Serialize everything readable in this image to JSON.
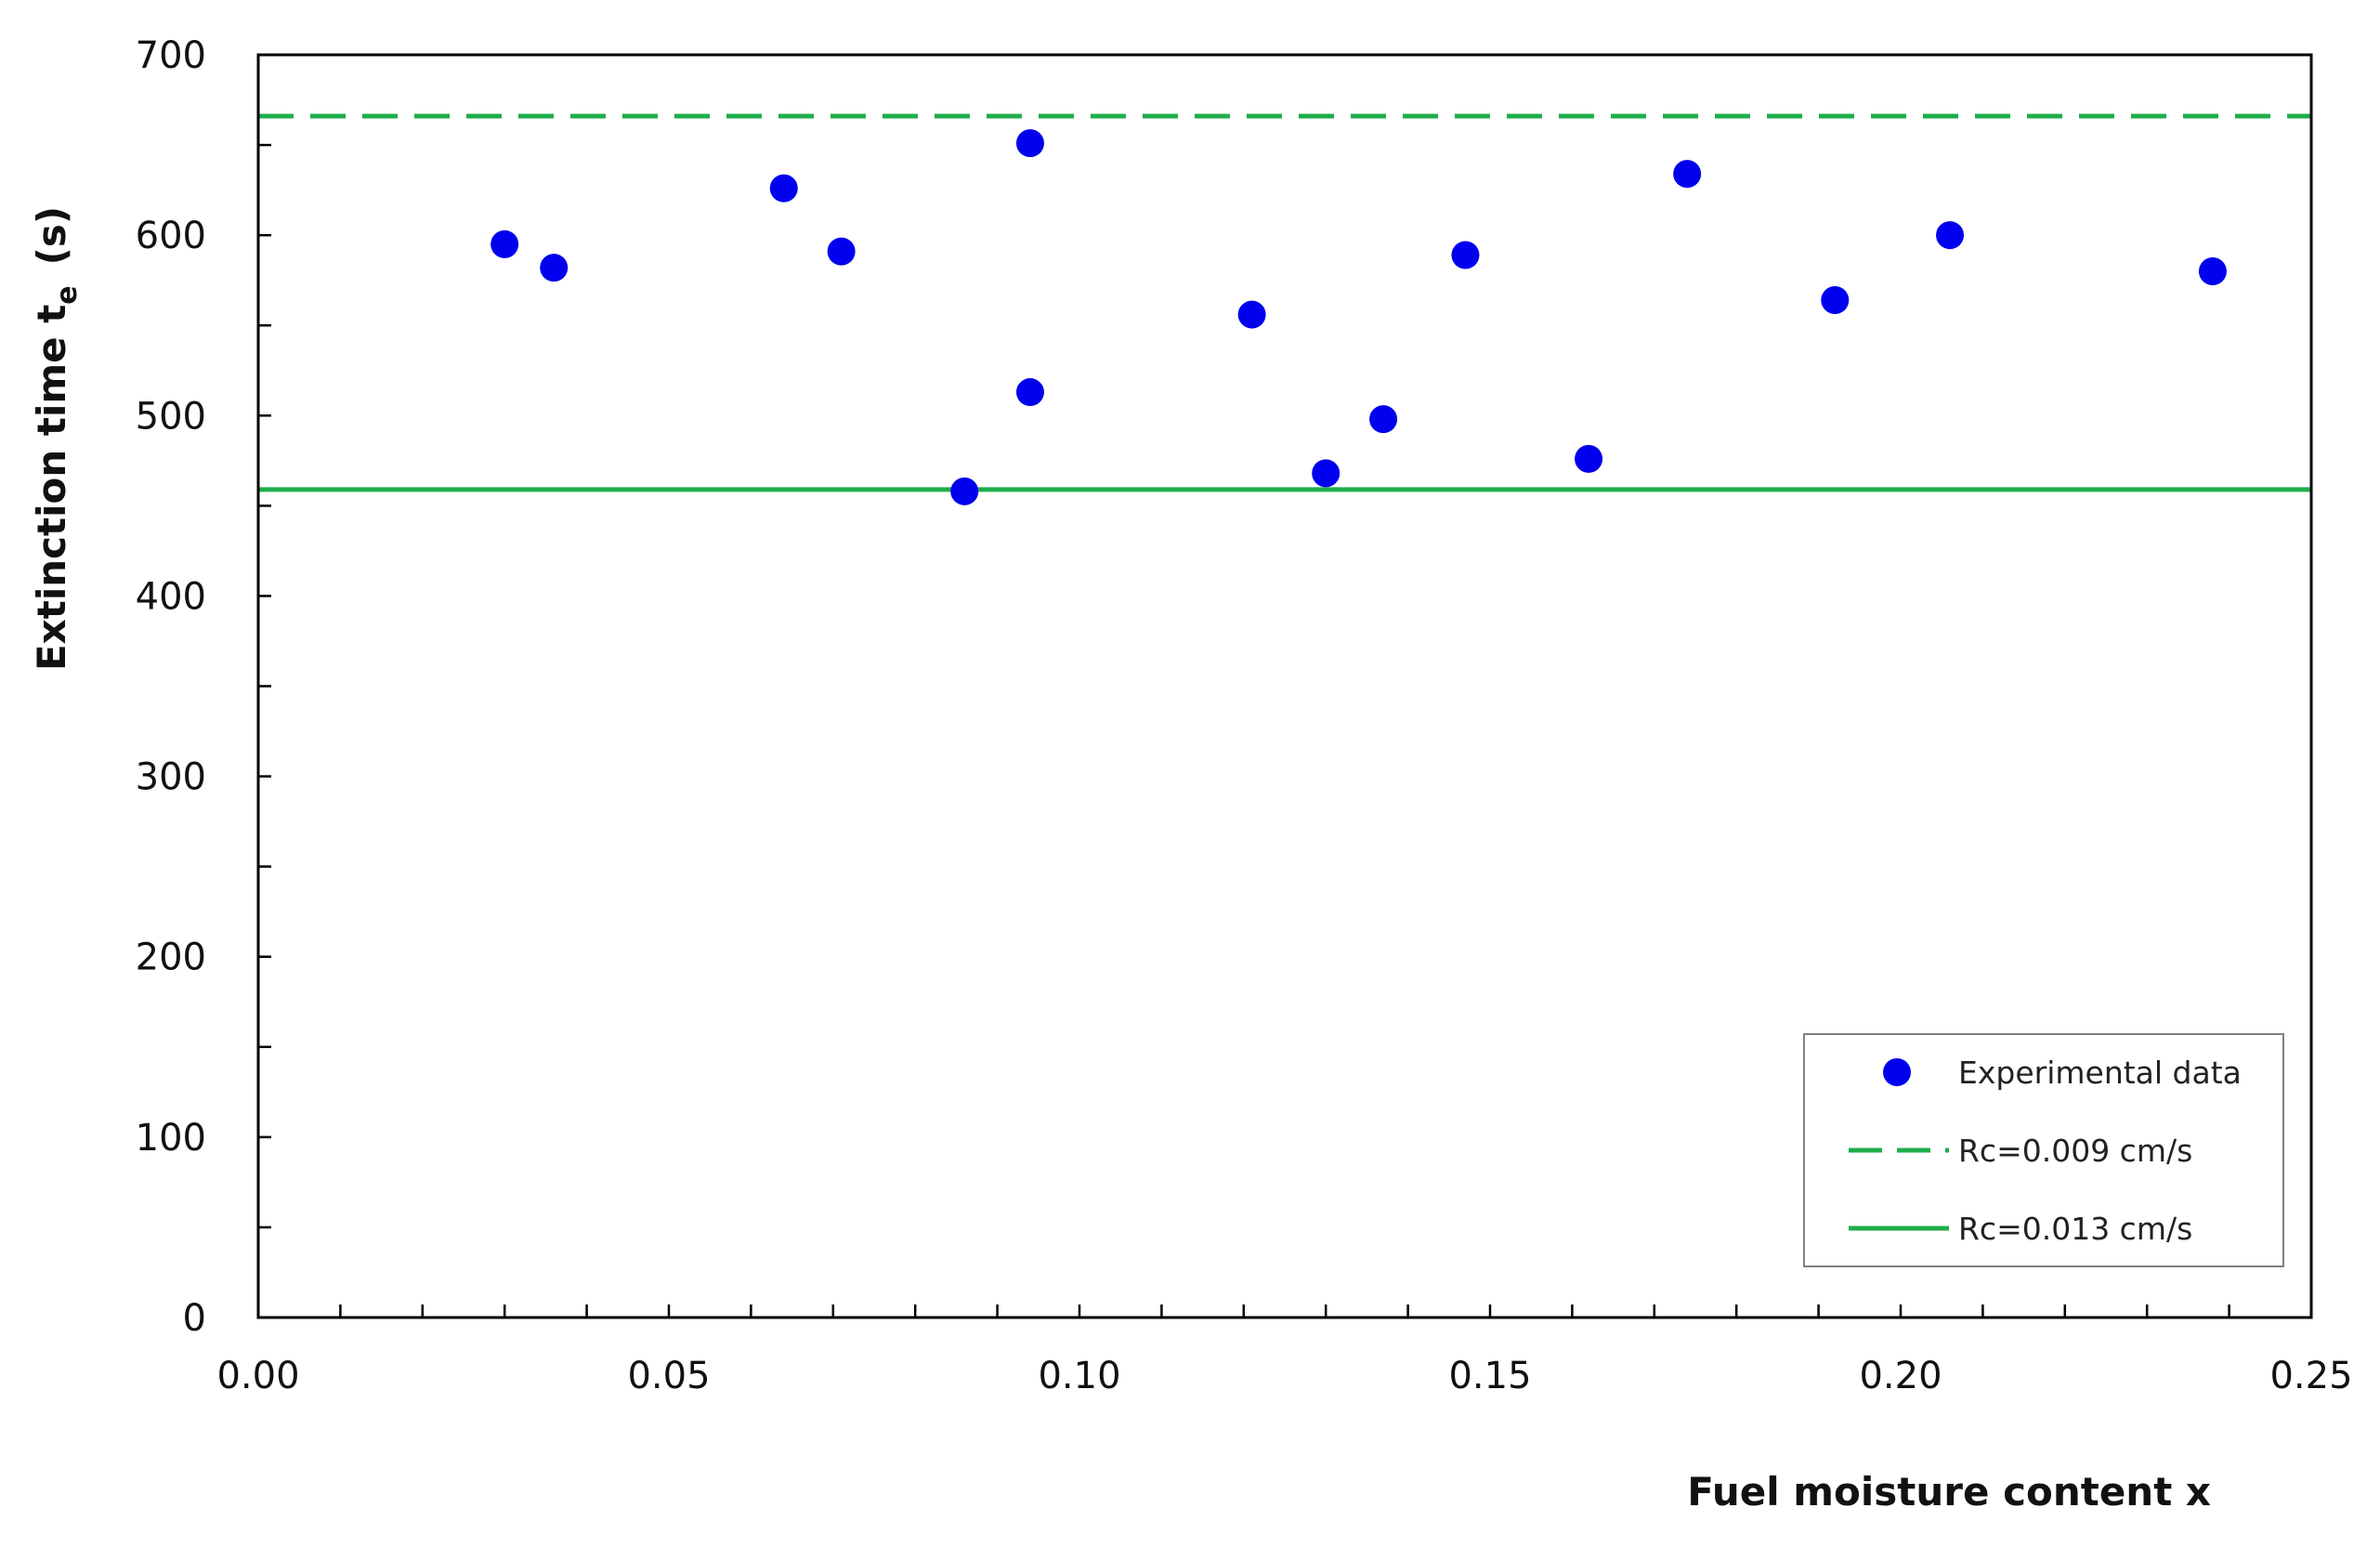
{
  "chart_data": {
    "type": "scatter",
    "xlabel": "Fuel moisture content x",
    "ylabel": {
      "main": "Extinction time t",
      "sub": "e",
      "unit": "(s)"
    },
    "xlim": [
      0,
      0.25
    ],
    "ylim": [
      0,
      700
    ],
    "x_ticks": [
      "0.00",
      "0.05",
      "0.10",
      "0.15",
      "0.20",
      "0.25"
    ],
    "y_ticks": [
      "0",
      "100",
      "200",
      "300",
      "400",
      "500",
      "600",
      "700"
    ],
    "x_minor_step": 0.01,
    "y_minor_step": 50,
    "grid": false,
    "legend_position": "bottom-right",
    "series": [
      {
        "name": "Experimental data",
        "kind": "scatter",
        "color": "#0000ee",
        "points": [
          {
            "x": 0.03,
            "y": 595
          },
          {
            "x": 0.036,
            "y": 582
          },
          {
            "x": 0.064,
            "y": 626
          },
          {
            "x": 0.071,
            "y": 591
          },
          {
            "x": 0.086,
            "y": 458
          },
          {
            "x": 0.094,
            "y": 651
          },
          {
            "x": 0.094,
            "y": 513
          },
          {
            "x": 0.121,
            "y": 556
          },
          {
            "x": 0.13,
            "y": 468
          },
          {
            "x": 0.137,
            "y": 498
          },
          {
            "x": 0.147,
            "y": 589
          },
          {
            "x": 0.162,
            "y": 476
          },
          {
            "x": 0.174,
            "y": 634
          },
          {
            "x": 0.192,
            "y": 564
          },
          {
            "x": 0.206,
            "y": 600
          },
          {
            "x": 0.238,
            "y": 580
          }
        ]
      },
      {
        "name": "Rc=0.009 cm/s",
        "kind": "hline",
        "y": 666,
        "style": "dashed",
        "color": "#1fad4b"
      },
      {
        "name": "Rc=0.013 cm/s",
        "kind": "hline",
        "y": 459,
        "style": "solid",
        "color": "#1fad4b"
      }
    ]
  }
}
